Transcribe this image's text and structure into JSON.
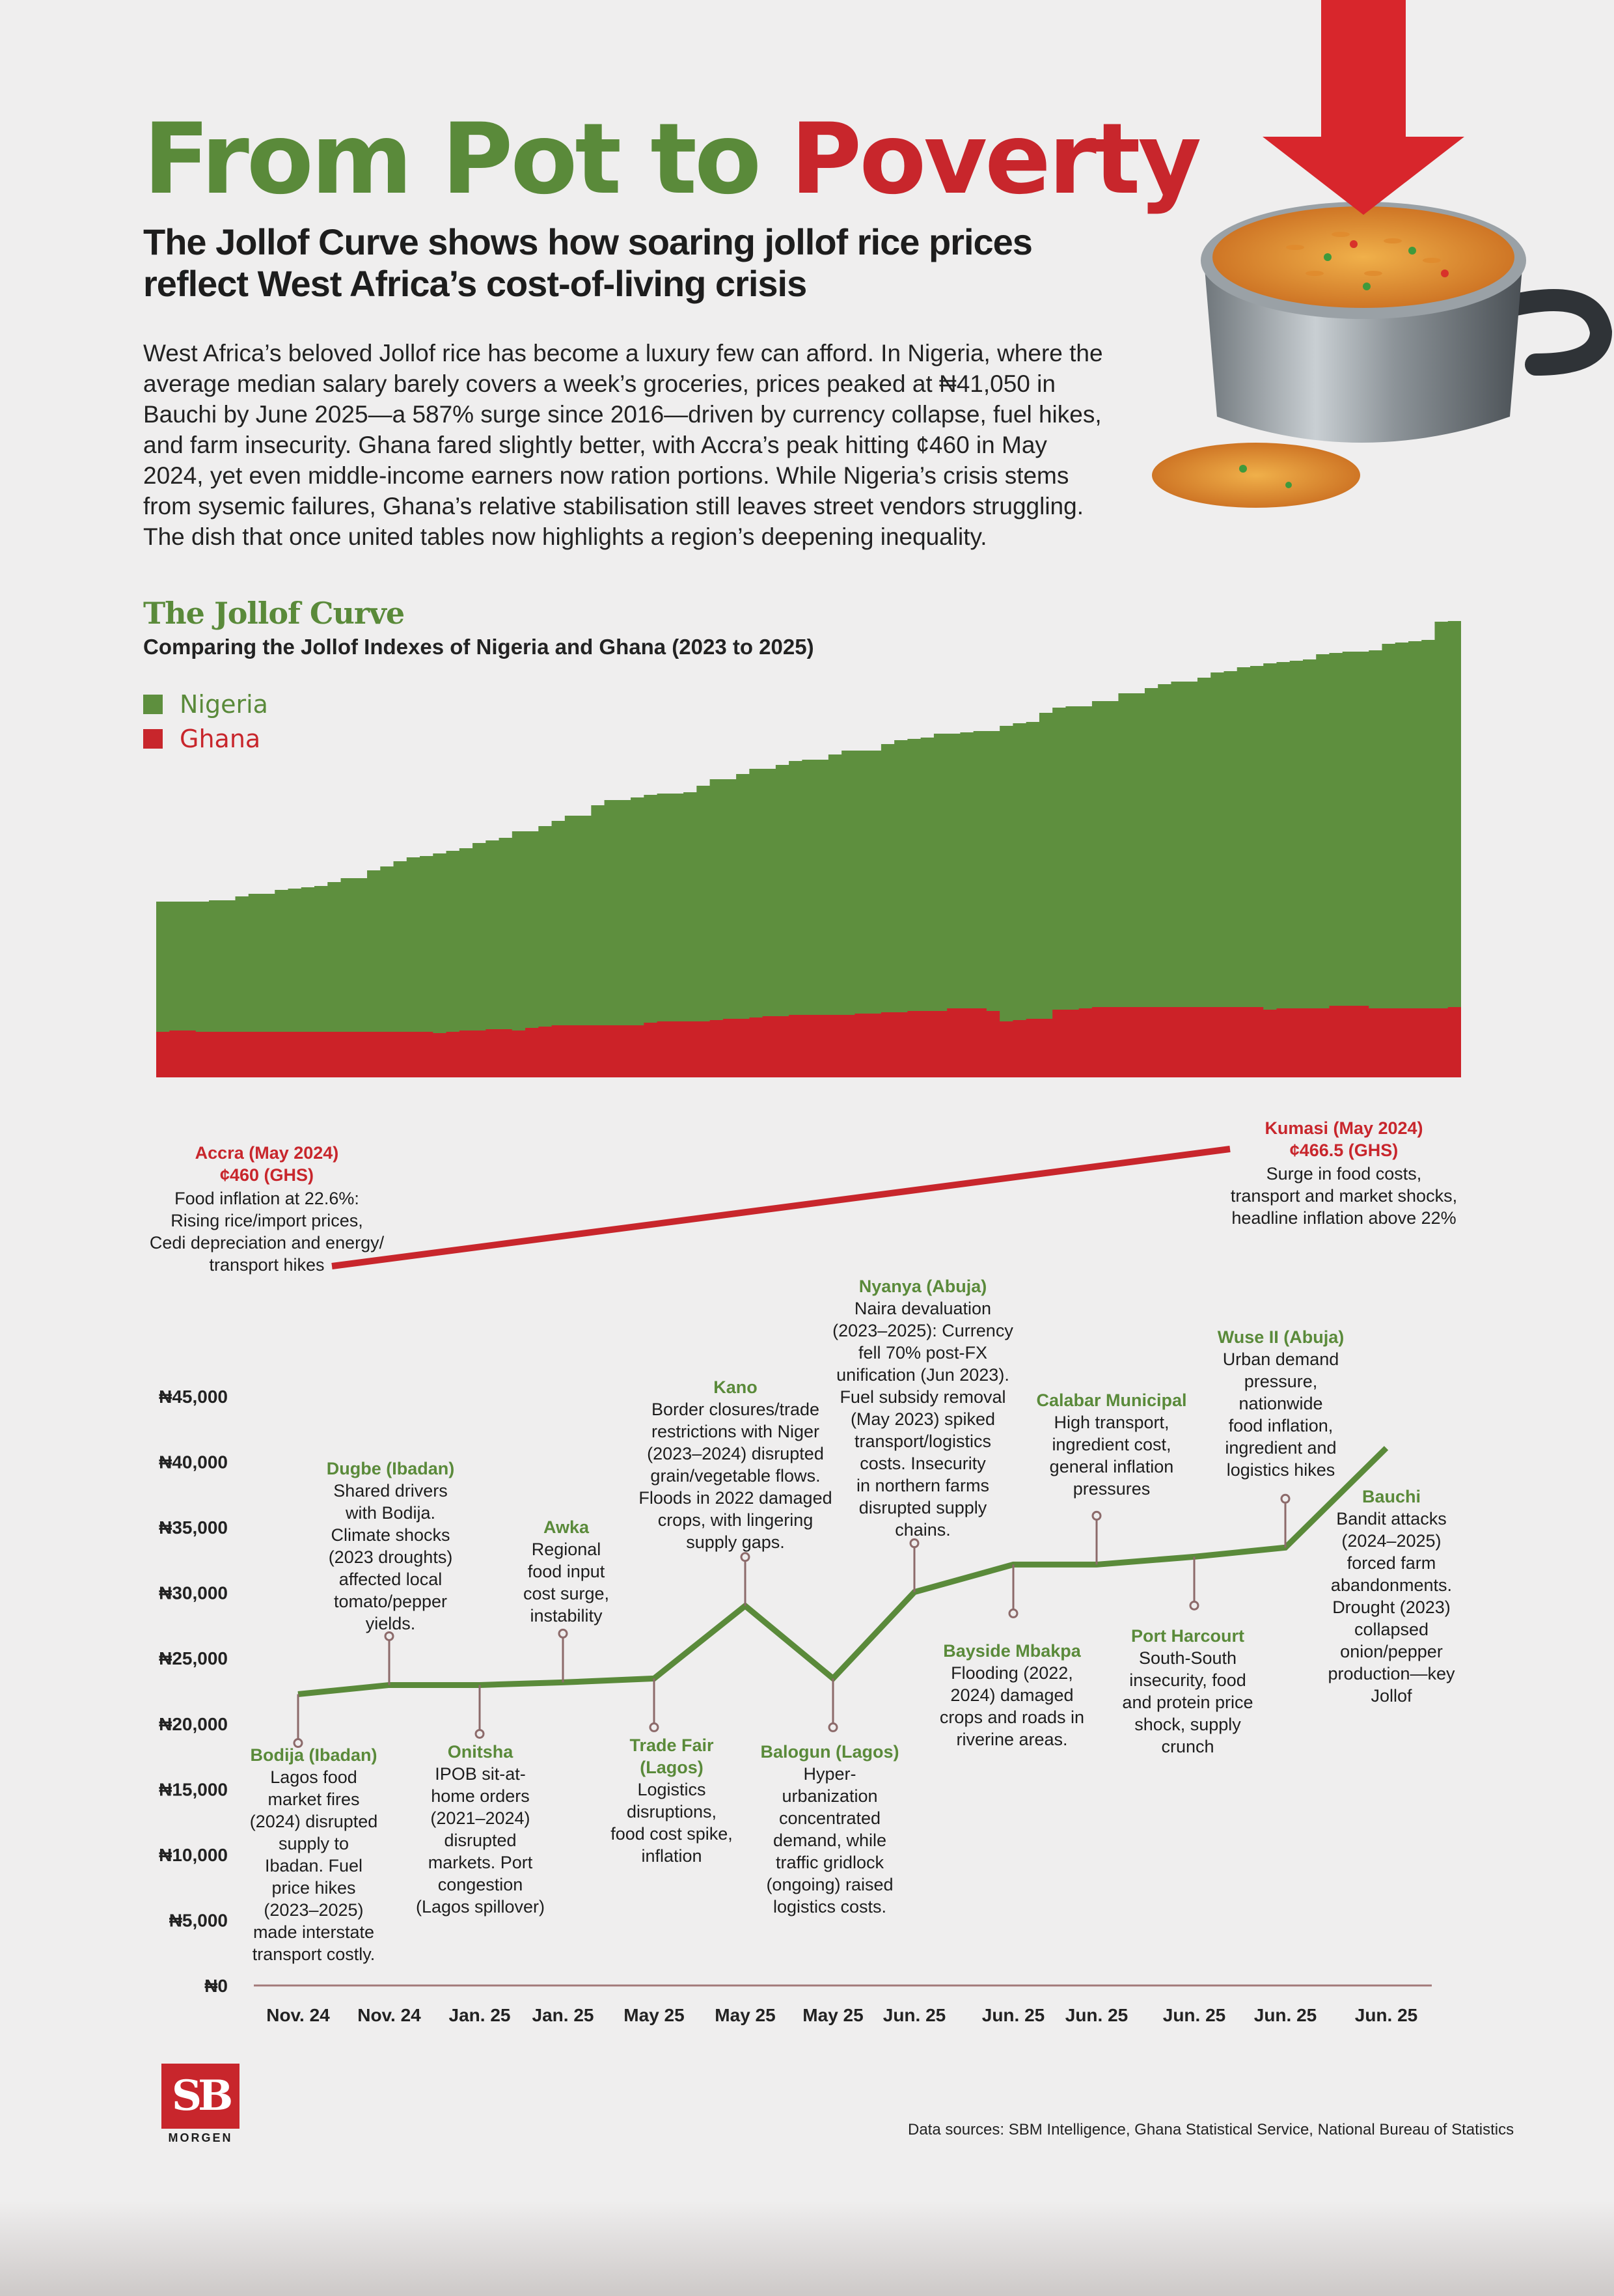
{
  "header": {
    "title_part1": "From Pot to",
    "title_part2": "Poverty",
    "subtitle": "The Jollof Curve shows how soaring jollof rice prices reflect West Africa’s cost-of-living crisis",
    "intro": "West Africa’s beloved Jollof rice has become a luxury few can afford. In Nigeria, where the average median salary barely covers a week’s groceries, prices peaked at ₦41,050 in Bauchi by June 2025—a 587% surge since 2016—driven by currency collapse, fuel hikes, and farm insecurity. Ghana fared slightly better, with Accra’s peak hitting ¢460 in May 2024, yet even middle-income earners now ration portions. While Nigeria’s crisis stems from sysemic failures, Ghana’s relative stabilisation still leaves street vendors struggling. The dish that once united tables now highlights a region’s deepening inequality."
  },
  "colors": {
    "green": "#5a8a3a",
    "red": "#c8262c",
    "area_green": "#5e8f3e",
    "area_red": "#cc2228"
  },
  "icons": [
    "down-arrow-icon",
    "jollof-pot-icon",
    "sb-morgen-logo"
  ],
  "chart_data": [
    {
      "type": "area",
      "title": "The Jollof Curve",
      "subtitle": "Comparing the Jollof Indexes of Nigeria and Ghana (2023 to 2025)",
      "legend": "top-left",
      "series": [
        {
          "name": "Nigeria",
          "color": "#5e8f3e",
          "values": [
            270,
            270,
            270,
            270,
            272,
            272,
            278,
            282,
            282,
            288,
            290,
            292,
            294,
            300,
            306,
            306,
            318,
            324,
            332,
            338,
            340,
            344,
            348,
            352,
            360,
            364,
            368,
            378,
            378,
            386,
            394,
            402,
            402,
            418,
            426,
            426,
            430,
            434,
            436,
            436,
            438,
            448,
            458,
            458,
            466,
            474,
            474,
            480,
            486,
            488,
            488,
            496,
            502,
            502,
            502,
            512,
            518,
            520,
            522,
            528,
            528,
            530,
            532,
            532,
            540,
            544,
            546,
            560,
            568,
            570,
            570,
            578,
            578,
            590,
            590,
            598,
            604,
            608,
            608,
            614,
            622,
            624,
            630,
            632,
            636,
            638,
            640,
            642,
            650,
            652,
            654,
            654,
            656,
            666,
            668,
            670,
            672,
            700,
            701
          ]
        },
        {
          "name": "Ghana",
          "color": "#cc2228",
          "values": [
            70,
            72,
            72,
            70,
            70,
            70,
            70,
            70,
            70,
            70,
            70,
            70,
            70,
            70,
            70,
            70,
            70,
            70,
            70,
            70,
            70,
            68,
            70,
            72,
            72,
            74,
            74,
            72,
            76,
            78,
            80,
            80,
            80,
            80,
            80,
            80,
            80,
            84,
            86,
            86,
            86,
            86,
            88,
            90,
            90,
            92,
            94,
            94,
            96,
            96,
            96,
            96,
            96,
            98,
            98,
            100,
            100,
            102,
            102,
            102,
            106,
            106,
            106,
            102,
            86,
            88,
            90,
            90,
            104,
            104,
            106,
            108,
            108,
            108,
            108,
            108,
            108,
            108,
            108,
            108,
            108,
            108,
            108,
            108,
            104,
            106,
            106,
            106,
            106,
            110,
            110,
            110,
            106,
            106,
            106,
            106,
            106,
            106,
            108
          ]
        }
      ]
    },
    {
      "type": "line",
      "name": "Ghana",
      "points": [
        {
          "location": "Accra (May 2024)",
          "price_label": "¢460 (GHS)",
          "value": 460,
          "note": "Food inflation at 22.6%: Rising rice/import prices, Cedi depreciation and energy/ transport hikes"
        },
        {
          "location": "Kumasi  (May 2024)",
          "price_label": "¢466.5 (GHS)",
          "value": 466.5,
          "note": "Surge in food costs, transport and market shocks, headline inflation above 22%"
        }
      ]
    },
    {
      "type": "line",
      "name": "Nigeria",
      "ylim": [
        0,
        45000
      ],
      "yticks": [
        "₦0",
        "₦5,000",
        "₦10,000",
        "₦15,000",
        "₦20,000",
        "₦25,000",
        "₦30,000",
        "₦35,000",
        "₦40,000",
        "₦45,000"
      ],
      "categories": [
        "Nov. 24",
        "Nov. 24",
        "Jan. 25",
        "Jan. 25",
        "May 25",
        "May 25",
        "May 25",
        "Jun. 25",
        "Jun. 25",
        "Jun. 25",
        "Jun. 25",
        "Jun. 25",
        "Jun. 25"
      ],
      "values": [
        22250,
        22950,
        22950,
        23150,
        23450,
        29000,
        23450,
        30050,
        32150,
        32150,
        32750,
        33450,
        41050
      ],
      "annotations": [
        {
          "title": "Bodija (Ibadan)",
          "body": [
            "Lagos food",
            "market fires",
            "(2024) disrupted",
            "supply to",
            "Ibadan. Fuel",
            "price hikes",
            "(2023–2025)",
            "made interstate",
            "transport costly."
          ]
        },
        {
          "title": "Dugbe (Ibadan)",
          "body": [
            "Shared drivers",
            "with Bodija.",
            "Climate shocks",
            "(2023 droughts)",
            "affected local",
            "tomato/pepper",
            "yields."
          ]
        },
        {
          "title": "Onitsha",
          "body": [
            "IPOB sit-at-",
            "home orders",
            "(2021–2024)",
            "disrupted",
            "markets. Port",
            "congestion",
            "(Lagos spillover)"
          ]
        },
        {
          "title": "Awka",
          "body": [
            "Regional",
            "food input",
            "cost surge,",
            "instability"
          ]
        },
        {
          "title": "Trade Fair (Lagos)",
          "body": [
            "Logistics",
            "disruptions,",
            "food cost spike,",
            "inflation"
          ]
        },
        {
          "title": "Kano",
          "body": [
            "Border closures/trade",
            "restrictions with Niger",
            "(2023–2024) disrupted",
            "grain/vegetable flows.",
            "Floods in 2022 damaged",
            "crops, with lingering",
            "supply gaps."
          ]
        },
        {
          "title": "Balogun (Lagos)",
          "body": [
            "Hyper-",
            "urbanization",
            "concentrated",
            "demand, while",
            "traffic gridlock",
            "(ongoing) raised",
            "logistics costs."
          ]
        },
        {
          "title": "Nyanya (Abuja)",
          "body": [
            "Naira devaluation",
            "(2023–2025): Currency",
            "fell 70% post-FX",
            "unification (Jun 2023).",
            "Fuel subsidy removal",
            "(May 2023) spiked",
            "transport/logistics",
            "costs. Insecurity",
            "in northern farms",
            "disrupted supply",
            "chains."
          ]
        },
        {
          "title": "Bayside Mbakpa",
          "body": [
            "Flooding (2022,",
            "2024) damaged",
            "crops and roads in",
            "riverine areas."
          ]
        },
        {
          "title": "Calabar Municipal",
          "body": [
            "High transport,",
            "ingredient cost,",
            "general inflation",
            "pressures"
          ]
        },
        {
          "title": "Port Harcourt",
          "body": [
            "South-South",
            "insecurity, food",
            "and protein price",
            "shock, supply",
            "crunch"
          ]
        },
        {
          "title": "Wuse II (Abuja)",
          "body": [
            "Urban demand",
            "pressure,",
            "nationwide",
            "food inflation,",
            "ingredient and",
            "logistics hikes"
          ]
        },
        {
          "title": "Bauchi",
          "body": [
            "Bandit attacks",
            "(2024–2025)",
            "forced farm",
            "abandonments.",
            "Drought (2023)",
            "collapsed",
            "onion/pepper",
            "production—key",
            "Jollof"
          ]
        }
      ]
    }
  ],
  "chart": {
    "title": "The Jollof Curve",
    "subtitle": "Comparing the Jollof Indexes of Nigeria and Ghana (2023 to 2025)",
    "legend_nigeria": "Nigeria",
    "legend_ghana": "Ghana"
  },
  "footer": {
    "source": "Data sources: SBM Intelligence, Ghana Statistical Service, National Bureau of Statistics",
    "logo_text": "SB",
    "logo_word": "MORGEN"
  }
}
